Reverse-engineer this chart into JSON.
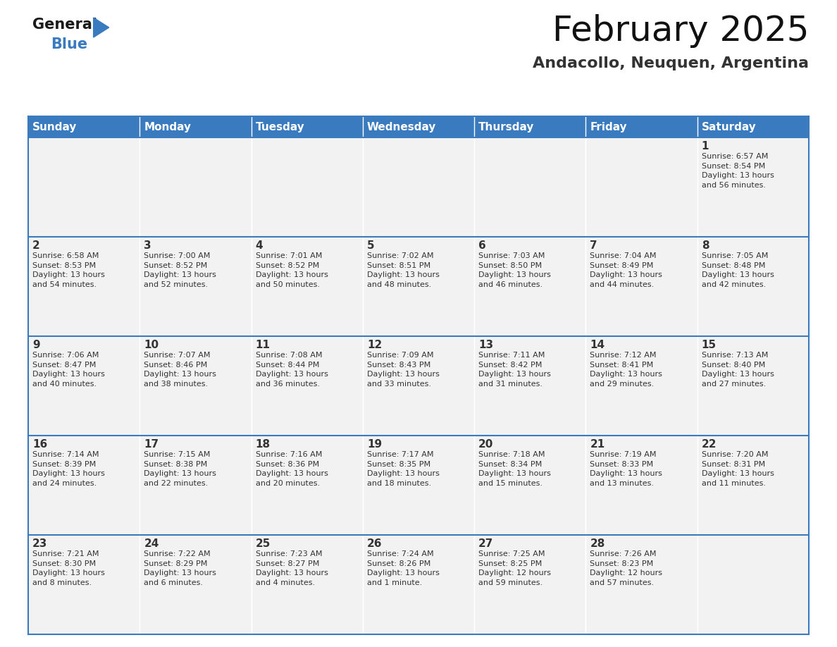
{
  "title": "February 2025",
  "subtitle": "Andacollo, Neuquen, Argentina",
  "header_color": "#3a7abf",
  "header_text_color": "#ffffff",
  "cell_bg": "#f2f2f2",
  "border_color": "#3a7abf",
  "text_color": "#333333",
  "day_headers": [
    "Sunday",
    "Monday",
    "Tuesday",
    "Wednesday",
    "Thursday",
    "Friday",
    "Saturday"
  ],
  "weeks": [
    [
      {
        "day": null,
        "info": null
      },
      {
        "day": null,
        "info": null
      },
      {
        "day": null,
        "info": null
      },
      {
        "day": null,
        "info": null
      },
      {
        "day": null,
        "info": null
      },
      {
        "day": null,
        "info": null
      },
      {
        "day": 1,
        "info": "Sunrise: 6:57 AM\nSunset: 8:54 PM\nDaylight: 13 hours\nand 56 minutes."
      }
    ],
    [
      {
        "day": 2,
        "info": "Sunrise: 6:58 AM\nSunset: 8:53 PM\nDaylight: 13 hours\nand 54 minutes."
      },
      {
        "day": 3,
        "info": "Sunrise: 7:00 AM\nSunset: 8:52 PM\nDaylight: 13 hours\nand 52 minutes."
      },
      {
        "day": 4,
        "info": "Sunrise: 7:01 AM\nSunset: 8:52 PM\nDaylight: 13 hours\nand 50 minutes."
      },
      {
        "day": 5,
        "info": "Sunrise: 7:02 AM\nSunset: 8:51 PM\nDaylight: 13 hours\nand 48 minutes."
      },
      {
        "day": 6,
        "info": "Sunrise: 7:03 AM\nSunset: 8:50 PM\nDaylight: 13 hours\nand 46 minutes."
      },
      {
        "day": 7,
        "info": "Sunrise: 7:04 AM\nSunset: 8:49 PM\nDaylight: 13 hours\nand 44 minutes."
      },
      {
        "day": 8,
        "info": "Sunrise: 7:05 AM\nSunset: 8:48 PM\nDaylight: 13 hours\nand 42 minutes."
      }
    ],
    [
      {
        "day": 9,
        "info": "Sunrise: 7:06 AM\nSunset: 8:47 PM\nDaylight: 13 hours\nand 40 minutes."
      },
      {
        "day": 10,
        "info": "Sunrise: 7:07 AM\nSunset: 8:46 PM\nDaylight: 13 hours\nand 38 minutes."
      },
      {
        "day": 11,
        "info": "Sunrise: 7:08 AM\nSunset: 8:44 PM\nDaylight: 13 hours\nand 36 minutes."
      },
      {
        "day": 12,
        "info": "Sunrise: 7:09 AM\nSunset: 8:43 PM\nDaylight: 13 hours\nand 33 minutes."
      },
      {
        "day": 13,
        "info": "Sunrise: 7:11 AM\nSunset: 8:42 PM\nDaylight: 13 hours\nand 31 minutes."
      },
      {
        "day": 14,
        "info": "Sunrise: 7:12 AM\nSunset: 8:41 PM\nDaylight: 13 hours\nand 29 minutes."
      },
      {
        "day": 15,
        "info": "Sunrise: 7:13 AM\nSunset: 8:40 PM\nDaylight: 13 hours\nand 27 minutes."
      }
    ],
    [
      {
        "day": 16,
        "info": "Sunrise: 7:14 AM\nSunset: 8:39 PM\nDaylight: 13 hours\nand 24 minutes."
      },
      {
        "day": 17,
        "info": "Sunrise: 7:15 AM\nSunset: 8:38 PM\nDaylight: 13 hours\nand 22 minutes."
      },
      {
        "day": 18,
        "info": "Sunrise: 7:16 AM\nSunset: 8:36 PM\nDaylight: 13 hours\nand 20 minutes."
      },
      {
        "day": 19,
        "info": "Sunrise: 7:17 AM\nSunset: 8:35 PM\nDaylight: 13 hours\nand 18 minutes."
      },
      {
        "day": 20,
        "info": "Sunrise: 7:18 AM\nSunset: 8:34 PM\nDaylight: 13 hours\nand 15 minutes."
      },
      {
        "day": 21,
        "info": "Sunrise: 7:19 AM\nSunset: 8:33 PM\nDaylight: 13 hours\nand 13 minutes."
      },
      {
        "day": 22,
        "info": "Sunrise: 7:20 AM\nSunset: 8:31 PM\nDaylight: 13 hours\nand 11 minutes."
      }
    ],
    [
      {
        "day": 23,
        "info": "Sunrise: 7:21 AM\nSunset: 8:30 PM\nDaylight: 13 hours\nand 8 minutes."
      },
      {
        "day": 24,
        "info": "Sunrise: 7:22 AM\nSunset: 8:29 PM\nDaylight: 13 hours\nand 6 minutes."
      },
      {
        "day": 25,
        "info": "Sunrise: 7:23 AM\nSunset: 8:27 PM\nDaylight: 13 hours\nand 4 minutes."
      },
      {
        "day": 26,
        "info": "Sunrise: 7:24 AM\nSunset: 8:26 PM\nDaylight: 13 hours\nand 1 minute."
      },
      {
        "day": 27,
        "info": "Sunrise: 7:25 AM\nSunset: 8:25 PM\nDaylight: 12 hours\nand 59 minutes."
      },
      {
        "day": 28,
        "info": "Sunrise: 7:26 AM\nSunset: 8:23 PM\nDaylight: 12 hours\nand 57 minutes."
      },
      {
        "day": null,
        "info": null
      }
    ]
  ],
  "logo_text1": "General",
  "logo_text2": "Blue",
  "logo_color1": "#1a1a1a",
  "logo_color2": "#3a7abf",
  "logo_triangle_color": "#3a7abf",
  "title_fontsize": 36,
  "subtitle_fontsize": 16,
  "header_fontsize": 11,
  "day_num_fontsize": 11,
  "cell_text_fontsize": 8
}
